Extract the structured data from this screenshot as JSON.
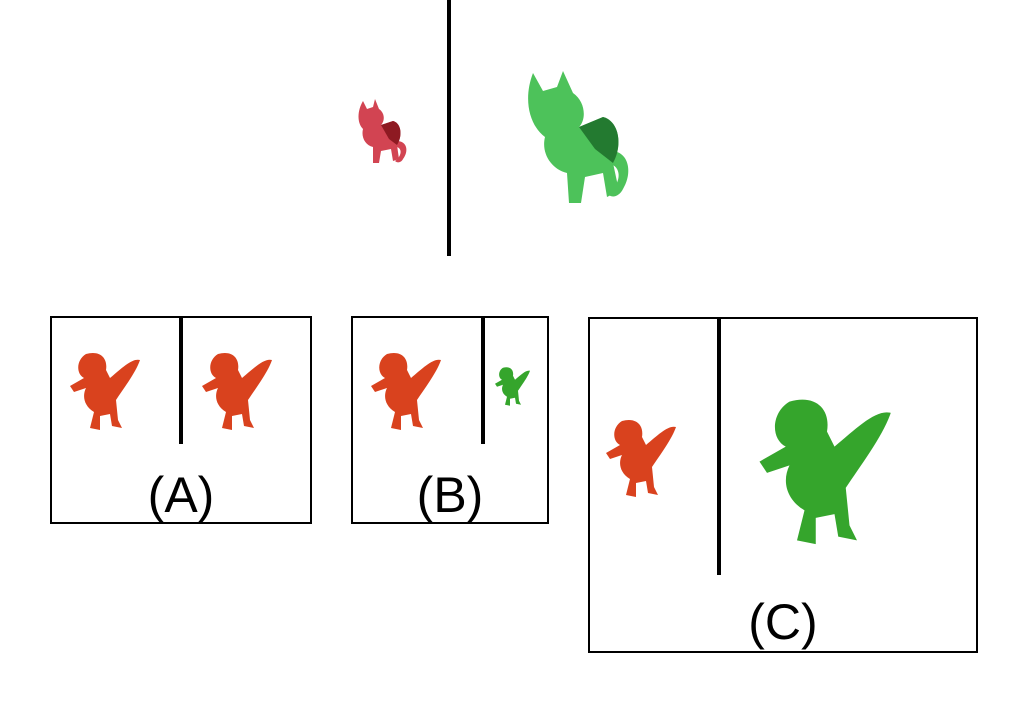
{
  "figure": {
    "reference": {
      "left_object": "cat",
      "left_color": "#c8343f",
      "right_object": "cat",
      "right_color": "#3cb043"
    },
    "options": [
      {
        "label": "(A)",
        "left_color": "#d9421e",
        "right_color": "#d9421e",
        "object": "dinosaur"
      },
      {
        "label": "(B)",
        "left_color": "#d9421e",
        "right_color": "#35a52c",
        "object": "dinosaur"
      },
      {
        "label": "(C)",
        "left_color": "#d9421e",
        "right_color": "#35a52c",
        "object": "dinosaur"
      }
    ]
  }
}
